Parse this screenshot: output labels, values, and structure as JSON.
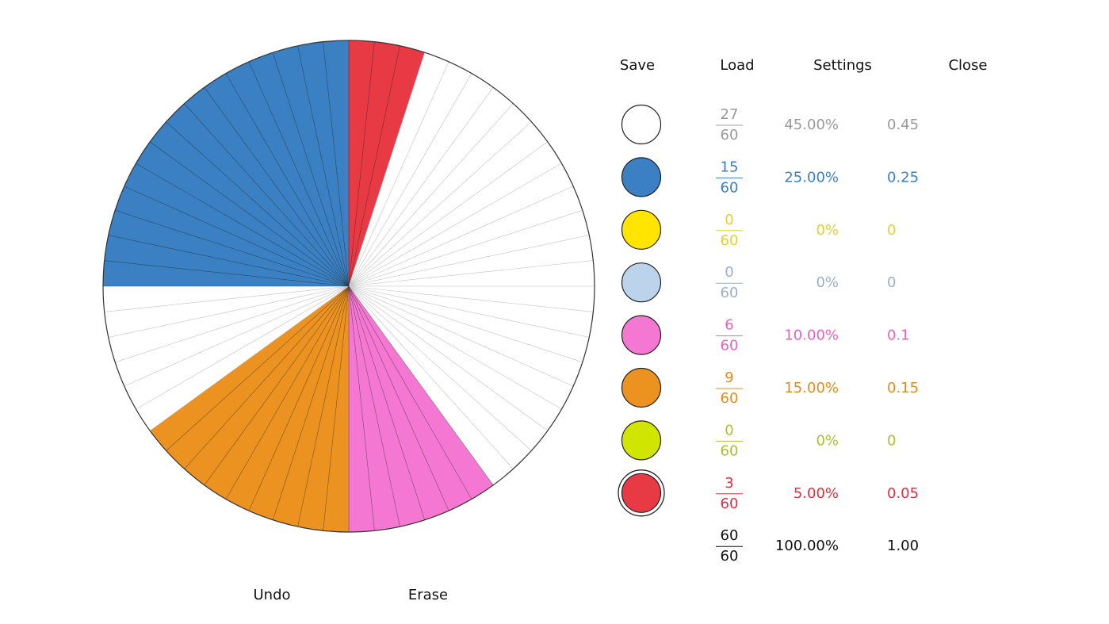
{
  "menu": [
    "Save",
    "Load",
    "Settings",
    "Close"
  ],
  "bottom_buttons": [
    "Undo",
    "Erase"
  ],
  "wheel": {
    "slice_colors": [
      "#e83a45",
      "#e83a45",
      "#e83a45",
      "#ffffff",
      "#ffffff",
      "#ffffff",
      "#ffffff",
      "#ffffff",
      "#ffffff",
      "#ffffff",
      "#ffffff",
      "#ffffff",
      "#ffffff",
      "#ffffff",
      "#ffffff",
      "#ffffff",
      "#ffffff",
      "#ffffff",
      "#ffffff",
      "#ffffff",
      "#ffffff",
      "#ffffff",
      "#ffffff",
      "#ffffff",
      "#f478d2",
      "#f478d2",
      "#f478d2",
      "#f478d2",
      "#f478d2",
      "#f478d2",
      "#ec9220",
      "#ec9220",
      "#ec9220",
      "#ec9220",
      "#ec9220",
      "#ec9220",
      "#ec9220",
      "#ec9220",
      "#ec9220",
      "#ffffff",
      "#ffffff",
      "#ffffff",
      "#ffffff",
      "#ffffff",
      "#ffffff",
      "#3a80c3",
      "#3a80c3",
      "#3a80c3",
      "#3a80c3",
      "#3a80c3",
      "#3a80c3",
      "#3a80c3",
      "#3a80c3",
      "#3a80c3",
      "#3a80c3",
      "#3a80c3",
      "#3a80c3",
      "#3a80c3",
      "#3a80c3",
      "#3a80c3"
    ]
  },
  "rows": [
    {
      "color": "#ffffff",
      "text_color": "#9a9a9a",
      "numerator": "27",
      "denominator": "60",
      "percent": "45.00%",
      "decimal": "0.45"
    },
    {
      "color": "#3a80c3",
      "text_color": "#3a80c3",
      "numerator": "15",
      "denominator": "60",
      "percent": "25.00%",
      "decimal": "0.25"
    },
    {
      "color": "#ffe500",
      "text_color": "#e6cf2e",
      "numerator": "0",
      "denominator": "60",
      "percent": "0%",
      "decimal": "0"
    },
    {
      "color": "#bcd3ec",
      "text_color": "#9bb0c6",
      "numerator": "0",
      "denominator": "60",
      "percent": "0%",
      "decimal": "0"
    },
    {
      "color": "#f478d2",
      "text_color": "#e860c2",
      "numerator": "6",
      "denominator": "60",
      "percent": "10.00%",
      "decimal": "0.1"
    },
    {
      "color": "#ec9220",
      "text_color": "#e88a18",
      "numerator": "9",
      "denominator": "60",
      "percent": "15.00%",
      "decimal": "0.15"
    },
    {
      "color": "#d0e600",
      "text_color": "#a9c22e",
      "numerator": "0",
      "denominator": "60",
      "percent": "0%",
      "decimal": "0"
    },
    {
      "color": "#e83a45",
      "text_color": "#e03040",
      "numerator": "3",
      "denominator": "60",
      "percent": "5.00%",
      "decimal": "0.05",
      "selected": true
    }
  ],
  "total": {
    "text_color": "#111111",
    "numerator": "60",
    "denominator": "60",
    "percent": "100.00%",
    "decimal": "1.00"
  }
}
